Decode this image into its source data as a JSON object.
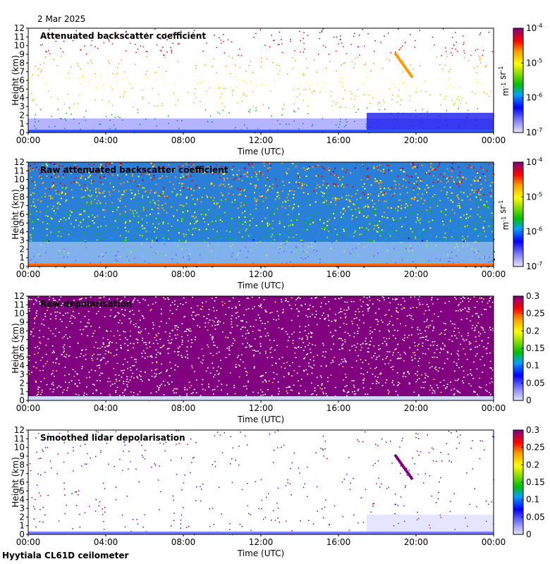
{
  "date_label": "2 Mar 2025",
  "footer_label": "Hyytiala CL61D ceilometer",
  "chart_data": [
    {
      "type": "heatmap",
      "title": "Attenuated backscatter coefficient",
      "xlabel": "Time (UTC)",
      "ylabel": "Height (km)",
      "x_ticks": [
        "00:00",
        "04:00",
        "08:00",
        "12:00",
        "16:00",
        "20:00",
        "00:00"
      ],
      "y_ticks": [
        "0",
        "1",
        "2",
        "3",
        "4",
        "5",
        "6",
        "7",
        "8",
        "9",
        "10",
        "11",
        "12"
      ],
      "ylim": [
        0,
        12
      ],
      "colorbar": {
        "scale": "log",
        "range": [
          1e-07,
          0.0001
        ],
        "unit": "m-1 sr-1",
        "ticks": [
          {
            "base": "10",
            "exp": "-4"
          },
          {
            "base": "10",
            "exp": "-5"
          },
          {
            "base": "10",
            "exp": "-6"
          },
          {
            "base": "10",
            "exp": "-7"
          }
        ]
      }
    },
    {
      "type": "heatmap",
      "title": "Raw attenuated backscatter coefficient",
      "xlabel": "Time (UTC)",
      "ylabel": "Height (km)",
      "x_ticks": [
        "00:00",
        "04:00",
        "08:00",
        "12:00",
        "16:00",
        "20:00",
        "00:00"
      ],
      "y_ticks": [
        "0",
        "1",
        "2",
        "3",
        "4",
        "5",
        "6",
        "7",
        "8",
        "9",
        "10",
        "11",
        "12"
      ],
      "ylim": [
        0,
        12
      ],
      "colorbar": {
        "scale": "log",
        "range": [
          1e-07,
          0.0001
        ],
        "unit": "m-1 sr-1",
        "ticks": [
          {
            "base": "10",
            "exp": "-4"
          },
          {
            "base": "10",
            "exp": "-5"
          },
          {
            "base": "10",
            "exp": "-6"
          },
          {
            "base": "10",
            "exp": "-7"
          }
        ]
      }
    },
    {
      "type": "heatmap",
      "title": "Raw depolarisation",
      "xlabel": "Time (UTC)",
      "ylabel": "Height (km)",
      "x_ticks": [
        "00:00",
        "04:00",
        "08:00",
        "12:00",
        "16:00",
        "20:00",
        "00:00"
      ],
      "y_ticks": [
        "0",
        "1",
        "2",
        "3",
        "4",
        "5",
        "6",
        "7",
        "8",
        "9",
        "10",
        "11",
        "12"
      ],
      "ylim": [
        0,
        12
      ],
      "colorbar": {
        "scale": "linear",
        "range": [
          0,
          0.3
        ],
        "ticks": [
          "0.3",
          "0.25",
          "0.2",
          "0.15",
          "0.1",
          "0.05",
          "0"
        ]
      }
    },
    {
      "type": "heatmap",
      "title": "Smoothed lidar depolarisation",
      "xlabel": "Time (UTC)",
      "ylabel": "Height (km)",
      "x_ticks": [
        "00:00",
        "04:00",
        "08:00",
        "12:00",
        "16:00",
        "20:00",
        "00:00"
      ],
      "y_ticks": [
        "0",
        "1",
        "2",
        "3",
        "4",
        "5",
        "6",
        "7",
        "8",
        "9",
        "10",
        "11",
        "12"
      ],
      "ylim": [
        0,
        12
      ],
      "colorbar": {
        "scale": "linear",
        "range": [
          0,
          0.3
        ],
        "ticks": [
          "0.3",
          "0.25",
          "0.2",
          "0.15",
          "0.1",
          "0.05",
          "0"
        ]
      }
    }
  ]
}
